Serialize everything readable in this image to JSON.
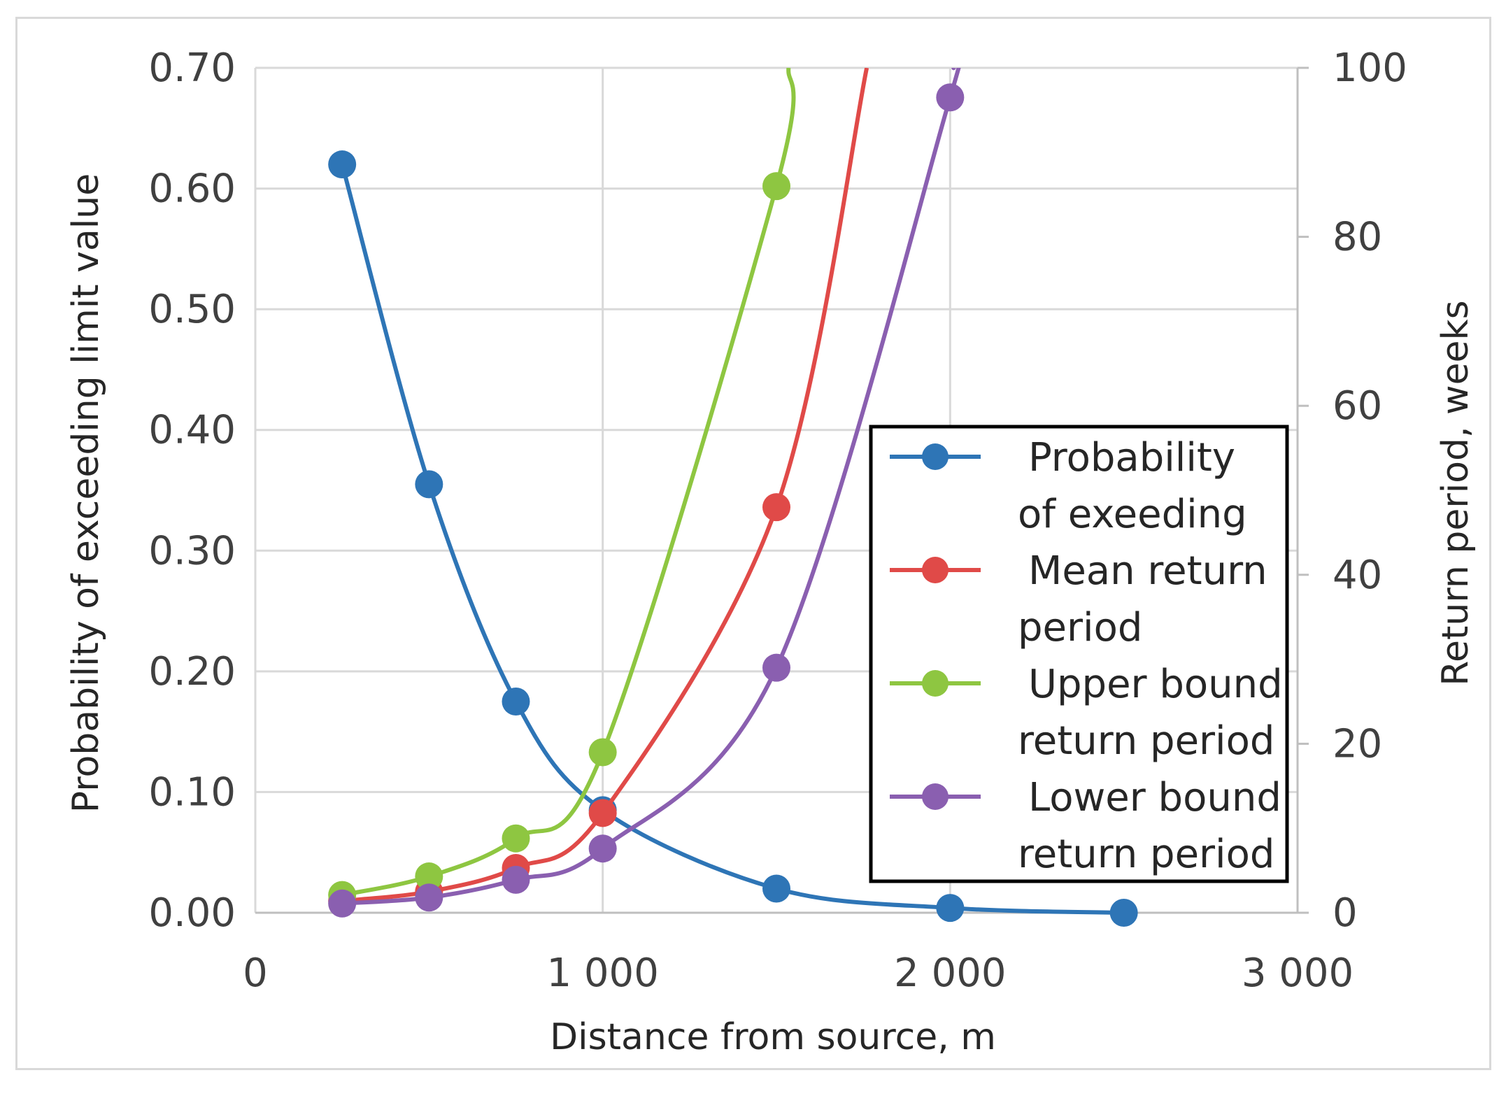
{
  "chart_data": {
    "type": "line",
    "title": "",
    "xlabel": "Distance from source, m",
    "ylabel_left": "Probability of exceeding limit value",
    "ylabel_right": "Return period, weeks",
    "xlim": [
      0,
      3000
    ],
    "ylim_left": [
      0,
      0.7
    ],
    "ylim_right": [
      0,
      100
    ],
    "x_ticks": [
      0,
      1000,
      2000,
      3000
    ],
    "x_tick_labels": [
      "0",
      "1 000",
      "2 000",
      "3 000"
    ],
    "y_left_ticks": [
      0,
      0.1,
      0.2,
      0.3,
      0.4,
      0.5,
      0.6,
      0.7
    ],
    "y_left_tick_labels": [
      "0.00",
      "0.10",
      "0.20",
      "0.30",
      "0.40",
      "0.50",
      "0.60",
      "0.70"
    ],
    "y_right_ticks": [
      0,
      20,
      40,
      60,
      80,
      100
    ],
    "y_right_tick_labels": [
      "0",
      "20",
      "40",
      "60",
      "80",
      "100"
    ],
    "grid": true,
    "legend_position": "lower-right",
    "series": [
      {
        "name": "Probability of exeeding",
        "legend_lines": [
          "Probability",
          "of exeeding"
        ],
        "axis": "left",
        "color": "#2e75b6",
        "x": [
          250,
          500,
          750,
          1000,
          1500,
          2000,
          2500
        ],
        "y": [
          0.62,
          0.355,
          0.175,
          0.085,
          0.02,
          0.004,
          0.0
        ],
        "extend_to": null
      },
      {
        "name": "Mean return period",
        "legend_lines": [
          "Mean return",
          "period"
        ],
        "axis": "right",
        "color": "#e04a48",
        "x": [
          250,
          500,
          750,
          1000,
          1500
        ],
        "y": [
          1.4,
          2.5,
          5.3,
          11.8,
          48
        ],
        "extend_to": [
          1760,
          100
        ]
      },
      {
        "name": "Upper bound return period",
        "legend_lines": [
          "Upper bound",
          "return period"
        ],
        "axis": "right",
        "color": "#8ec641",
        "x": [
          250,
          500,
          750,
          1000,
          1500
        ],
        "y": [
          2.1,
          4.3,
          8.8,
          19.0,
          86
        ],
        "extend_to": [
          1535,
          100
        ]
      },
      {
        "name": "Lower bound return period",
        "legend_lines": [
          "Lower bound",
          "return period"
        ],
        "axis": "right",
        "color": "#8a5fb0",
        "x": [
          250,
          500,
          750,
          1000,
          1500,
          2000
        ],
        "y": [
          1.1,
          1.8,
          3.9,
          7.6,
          29,
          96.5
        ],
        "extend_to": [
          2010,
          100
        ]
      }
    ]
  }
}
